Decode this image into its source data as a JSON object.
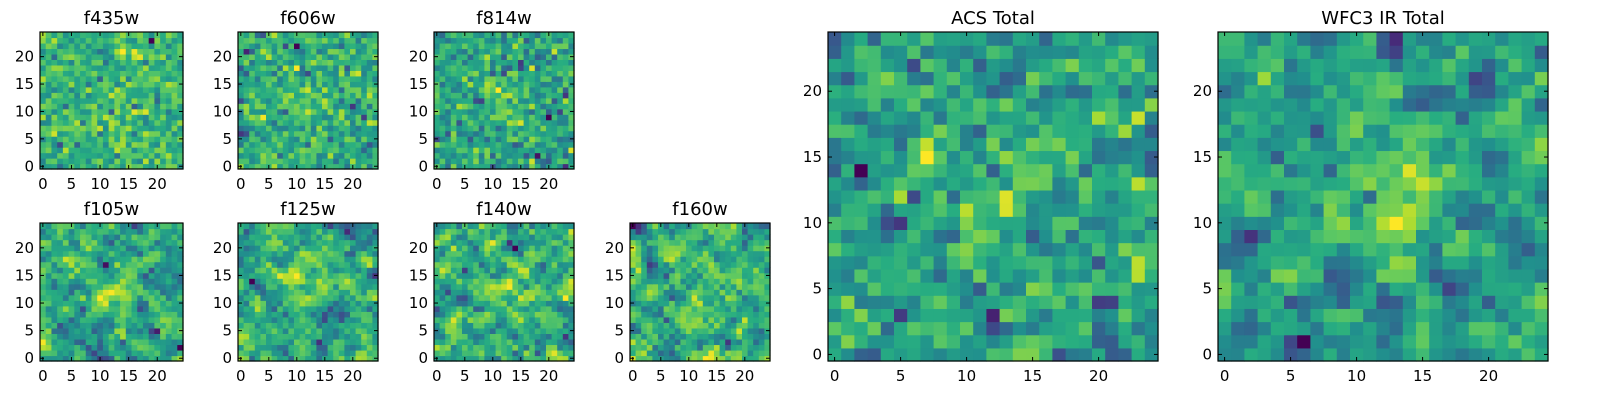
{
  "figure": {
    "colormap": "viridis",
    "background": "#ffffff"
  },
  "chart_data": [
    {
      "type": "heatmap",
      "title": "f435w",
      "grid_size": [
        25,
        25
      ],
      "seed": 11,
      "center_boost": 0.05,
      "smooth": 0.0,
      "x_ticks": [
        "0",
        "5",
        "10",
        "15",
        "20"
      ],
      "y_ticks": [
        "0",
        "5",
        "10",
        "15",
        "20"
      ],
      "xlim": [
        -0.5,
        24.5
      ],
      "ylim": [
        -0.5,
        24.5
      ],
      "grid": false
    },
    {
      "type": "heatmap",
      "title": "f606w",
      "grid_size": [
        25,
        25
      ],
      "seed": 23,
      "center_boost": 0.1,
      "smooth": 0.0,
      "x_ticks": [
        "0",
        "5",
        "10",
        "15",
        "20"
      ],
      "y_ticks": [
        "0",
        "5",
        "10",
        "15",
        "20"
      ],
      "xlim": [
        -0.5,
        24.5
      ],
      "ylim": [
        -0.5,
        24.5
      ],
      "grid": false
    },
    {
      "type": "heatmap",
      "title": "f814w",
      "grid_size": [
        25,
        25
      ],
      "seed": 37,
      "center_boost": 0.25,
      "smooth": 0.0,
      "x_ticks": [
        "0",
        "5",
        "10",
        "15",
        "20"
      ],
      "y_ticks": [
        "0",
        "5",
        "10",
        "15",
        "20"
      ],
      "xlim": [
        -0.5,
        24.5
      ],
      "ylim": [
        -0.5,
        24.5
      ],
      "grid": false
    },
    {
      "type": "heatmap",
      "title": "f105w",
      "grid_size": [
        25,
        25
      ],
      "seed": 41,
      "center_boost": 0.35,
      "smooth": 0.5,
      "x_ticks": [
        "0",
        "5",
        "10",
        "15",
        "20"
      ],
      "y_ticks": [
        "0",
        "5",
        "10",
        "15",
        "20"
      ],
      "xlim": [
        -0.5,
        24.5
      ],
      "ylim": [
        -0.5,
        24.5
      ],
      "grid": false
    },
    {
      "type": "heatmap",
      "title": "f125w",
      "grid_size": [
        25,
        25
      ],
      "seed": 53,
      "center_boost": 0.3,
      "smooth": 0.5,
      "x_ticks": [
        "0",
        "5",
        "10",
        "15",
        "20"
      ],
      "y_ticks": [
        "0",
        "5",
        "10",
        "15",
        "20"
      ],
      "xlim": [
        -0.5,
        24.5
      ],
      "ylim": [
        -0.5,
        24.5
      ],
      "grid": false
    },
    {
      "type": "heatmap",
      "title": "f140w",
      "grid_size": [
        25,
        25
      ],
      "seed": 67,
      "center_boost": 0.25,
      "smooth": 0.5,
      "x_ticks": [
        "0",
        "5",
        "10",
        "15",
        "20"
      ],
      "y_ticks": [
        "0",
        "5",
        "10",
        "15",
        "20"
      ],
      "xlim": [
        -0.5,
        24.5
      ],
      "ylim": [
        -0.5,
        24.5
      ],
      "grid": false
    },
    {
      "type": "heatmap",
      "title": "f160w",
      "grid_size": [
        25,
        25
      ],
      "seed": 79,
      "center_boost": 0.2,
      "smooth": 0.5,
      "x_ticks": [
        "0",
        "5",
        "10",
        "15",
        "20"
      ],
      "y_ticks": [
        "0",
        "5",
        "10",
        "15",
        "20"
      ],
      "xlim": [
        -0.5,
        24.5
      ],
      "ylim": [
        -0.5,
        24.5
      ],
      "grid": false
    },
    {
      "type": "heatmap",
      "title": "ACS Total",
      "grid_size": [
        25,
        25
      ],
      "seed": 97,
      "center_boost": 0.3,
      "smooth": 0.3,
      "x_ticks": [
        "0",
        "5",
        "10",
        "15",
        "20"
      ],
      "y_ticks": [
        "0",
        "5",
        "10",
        "15",
        "20"
      ],
      "xlim": [
        -0.5,
        24.5
      ],
      "ylim": [
        -0.5,
        24.5
      ],
      "grid": false
    },
    {
      "type": "heatmap",
      "title": "WFC3 IR Total",
      "grid_size": [
        25,
        25
      ],
      "seed": 113,
      "center_boost": 0.4,
      "smooth": 0.5,
      "x_ticks": [
        "0",
        "5",
        "10",
        "15",
        "20"
      ],
      "y_ticks": [
        "0",
        "5",
        "10",
        "15",
        "20"
      ],
      "xlim": [
        -0.5,
        24.5
      ],
      "ylim": [
        -0.5,
        24.5
      ],
      "grid": false
    }
  ]
}
